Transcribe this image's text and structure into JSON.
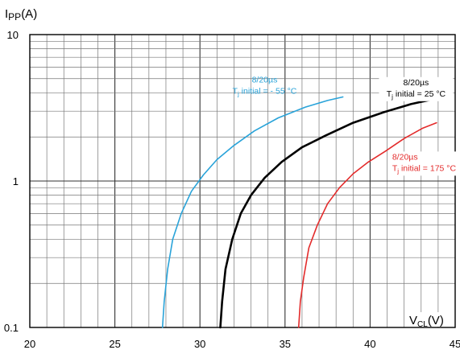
{
  "chart_data": {
    "type": "line",
    "title": "",
    "ylabel": {
      "main": "I",
      "sub": "PP",
      "unit": "(A)"
    },
    "xlabel": {
      "main": "V",
      "sub": "CL",
      "unit": "(V)"
    },
    "xlim": [
      20,
      45
    ],
    "ylim": [
      0.1,
      10
    ],
    "yscale": "log",
    "grid": true,
    "x_ticks": [
      "20",
      "25",
      "30",
      "35",
      "40",
      "45"
    ],
    "y_ticks": [
      "10",
      "1",
      "0.1"
    ],
    "series": [
      {
        "color": "#29a3d9",
        "annotation": [
          "8/20µs",
          "T",
          "j",
          " initial = - 55 °C"
        ],
        "points": [
          [
            27.8,
            0.1
          ],
          [
            27.9,
            0.15
          ],
          [
            28.1,
            0.25
          ],
          [
            28.4,
            0.4
          ],
          [
            28.9,
            0.6
          ],
          [
            29.5,
            0.85
          ],
          [
            30.2,
            1.1
          ],
          [
            31.0,
            1.4
          ],
          [
            32.0,
            1.75
          ],
          [
            33.2,
            2.2
          ],
          [
            34.6,
            2.7
          ],
          [
            36.2,
            3.2
          ],
          [
            37.5,
            3.55
          ],
          [
            38.4,
            3.75
          ]
        ]
      },
      {
        "color": "#000000",
        "annotation": [
          "8/20µs",
          "T",
          "j",
          " initial = 25 °C"
        ],
        "points": [
          [
            31.2,
            0.1
          ],
          [
            31.3,
            0.15
          ],
          [
            31.5,
            0.25
          ],
          [
            31.9,
            0.4
          ],
          [
            32.4,
            0.6
          ],
          [
            33.0,
            0.8
          ],
          [
            33.8,
            1.05
          ],
          [
            34.8,
            1.35
          ],
          [
            36.0,
            1.7
          ],
          [
            37.4,
            2.05
          ],
          [
            39.0,
            2.5
          ],
          [
            40.8,
            2.95
          ],
          [
            42.4,
            3.35
          ],
          [
            43.6,
            3.6
          ]
        ]
      },
      {
        "color": "#e32b2b",
        "annotation": [
          "8/20µs",
          "T",
          "j",
          " initial = 175 °C"
        ],
        "points": [
          [
            35.8,
            0.1
          ],
          [
            35.9,
            0.15
          ],
          [
            36.1,
            0.22
          ],
          [
            36.4,
            0.35
          ],
          [
            36.9,
            0.5
          ],
          [
            37.5,
            0.7
          ],
          [
            38.2,
            0.9
          ],
          [
            39.0,
            1.12
          ],
          [
            39.9,
            1.35
          ],
          [
            40.9,
            1.6
          ],
          [
            42.0,
            1.95
          ],
          [
            43.1,
            2.3
          ],
          [
            43.9,
            2.5
          ]
        ]
      }
    ]
  }
}
